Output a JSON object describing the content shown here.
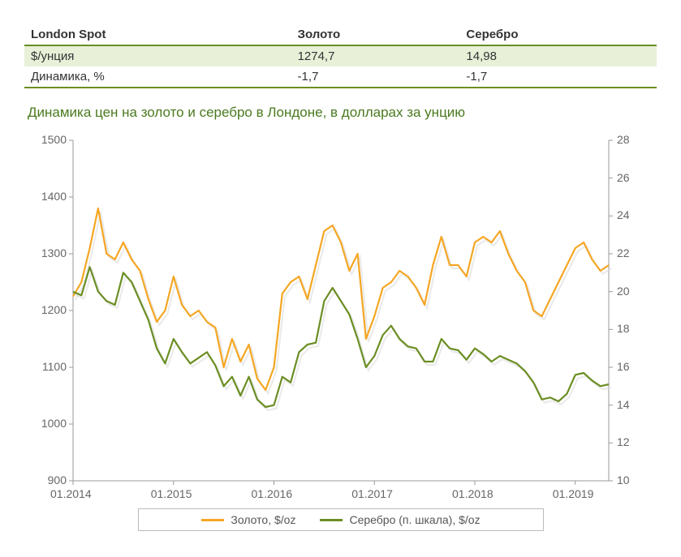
{
  "table": {
    "header": [
      "London Spot",
      "Золото",
      "Серебро"
    ],
    "rows": [
      [
        "$/унция",
        "1274,7",
        "14,98"
      ],
      [
        "Динамика, %",
        "-1,7",
        "-1,7"
      ]
    ],
    "header_border_color": "#6b8e23",
    "row0_bg": "#e8f0d8",
    "bottom_border_color": "#6b8e23"
  },
  "chart": {
    "title": "Динамика цен на золото и серебро в Лондоне, в долларах за унцию",
    "title_color": "#4a7a1f",
    "plot_bg": "#ffffff",
    "left_axis": {
      "min": 900,
      "max": 1500,
      "step": 100,
      "labels": [
        "1500",
        "1400",
        "1300",
        "1200",
        "1100",
        "1000",
        "900"
      ]
    },
    "right_axis": {
      "min": 10,
      "max": 28,
      "step": 2,
      "labels": [
        "28",
        "26",
        "24",
        "22",
        "20",
        "18",
        "16",
        "14",
        "12",
        "10"
      ]
    },
    "x_axis": {
      "labels": [
        "01.2014",
        "01.2015",
        "01.2016",
        "01.2017",
        "01.2018",
        "01.2019"
      ]
    },
    "x_range": [
      0,
      64
    ],
    "series": [
      {
        "name": "Золото, $/oz",
        "axis": "left",
        "color": "#f5a623",
        "shadow": "#d8d8d8",
        "line_width": 2.2,
        "data": [
          [
            0,
            1225
          ],
          [
            1,
            1250
          ],
          [
            2,
            1310
          ],
          [
            3,
            1380
          ],
          [
            4,
            1300
          ],
          [
            5,
            1290
          ],
          [
            6,
            1320
          ],
          [
            7,
            1290
          ],
          [
            8,
            1270
          ],
          [
            9,
            1220
          ],
          [
            10,
            1180
          ],
          [
            11,
            1200
          ],
          [
            12,
            1260
          ],
          [
            13,
            1210
          ],
          [
            14,
            1190
          ],
          [
            15,
            1200
          ],
          [
            16,
            1180
          ],
          [
            17,
            1170
          ],
          [
            18,
            1100
          ],
          [
            19,
            1150
          ],
          [
            20,
            1110
          ],
          [
            21,
            1140
          ],
          [
            22,
            1080
          ],
          [
            23,
            1060
          ],
          [
            24,
            1100
          ],
          [
            25,
            1230
          ],
          [
            26,
            1250
          ],
          [
            27,
            1260
          ],
          [
            28,
            1220
          ],
          [
            29,
            1280
          ],
          [
            30,
            1340
          ],
          [
            31,
            1350
          ],
          [
            32,
            1320
          ],
          [
            33,
            1270
          ],
          [
            34,
            1300
          ],
          [
            35,
            1150
          ],
          [
            36,
            1190
          ],
          [
            37,
            1240
          ],
          [
            38,
            1250
          ],
          [
            39,
            1270
          ],
          [
            40,
            1260
          ],
          [
            41,
            1240
          ],
          [
            42,
            1210
          ],
          [
            43,
            1280
          ],
          [
            44,
            1330
          ],
          [
            45,
            1280
          ],
          [
            46,
            1280
          ],
          [
            47,
            1260
          ],
          [
            48,
            1320
          ],
          [
            49,
            1330
          ],
          [
            50,
            1320
          ],
          [
            51,
            1340
          ],
          [
            52,
            1300
          ],
          [
            53,
            1270
          ],
          [
            54,
            1250
          ],
          [
            55,
            1200
          ],
          [
            56,
            1190
          ],
          [
            57,
            1220
          ],
          [
            58,
            1250
          ],
          [
            59,
            1280
          ],
          [
            60,
            1310
          ],
          [
            61,
            1320
          ],
          [
            62,
            1290
          ],
          [
            63,
            1270
          ],
          [
            64,
            1280
          ]
        ]
      },
      {
        "name": "Серебро (п. шкала), $/oz",
        "axis": "right",
        "color": "#6b8e23",
        "shadow": "#d8d8d8",
        "line_width": 2.2,
        "data": [
          [
            0,
            20.0
          ],
          [
            1,
            19.8
          ],
          [
            2,
            21.3
          ],
          [
            3,
            20.0
          ],
          [
            4,
            19.5
          ],
          [
            5,
            19.3
          ],
          [
            6,
            21.0
          ],
          [
            7,
            20.5
          ],
          [
            8,
            19.5
          ],
          [
            9,
            18.5
          ],
          [
            10,
            17.0
          ],
          [
            11,
            16.2
          ],
          [
            12,
            17.5
          ],
          [
            13,
            16.8
          ],
          [
            14,
            16.2
          ],
          [
            15,
            16.5
          ],
          [
            16,
            16.8
          ],
          [
            17,
            16.1
          ],
          [
            18,
            15.0
          ],
          [
            19,
            15.5
          ],
          [
            20,
            14.5
          ],
          [
            21,
            15.5
          ],
          [
            22,
            14.3
          ],
          [
            23,
            13.9
          ],
          [
            24,
            14.0
          ],
          [
            25,
            15.5
          ],
          [
            26,
            15.2
          ],
          [
            27,
            16.8
          ],
          [
            28,
            17.2
          ],
          [
            29,
            17.3
          ],
          [
            30,
            19.5
          ],
          [
            31,
            20.2
          ],
          [
            32,
            19.5
          ],
          [
            33,
            18.8
          ],
          [
            34,
            17.5
          ],
          [
            35,
            16.0
          ],
          [
            36,
            16.6
          ],
          [
            37,
            17.7
          ],
          [
            38,
            18.2
          ],
          [
            39,
            17.5
          ],
          [
            40,
            17.1
          ],
          [
            41,
            17.0
          ],
          [
            42,
            16.3
          ],
          [
            43,
            16.3
          ],
          [
            44,
            17.5
          ],
          [
            45,
            17.0
          ],
          [
            46,
            16.9
          ],
          [
            47,
            16.4
          ],
          [
            48,
            17.0
          ],
          [
            49,
            16.7
          ],
          [
            50,
            16.3
          ],
          [
            51,
            16.6
          ],
          [
            52,
            16.4
          ],
          [
            53,
            16.2
          ],
          [
            54,
            15.8
          ],
          [
            55,
            15.2
          ],
          [
            56,
            14.3
          ],
          [
            57,
            14.4
          ],
          [
            58,
            14.2
          ],
          [
            59,
            14.6
          ],
          [
            60,
            15.6
          ],
          [
            61,
            15.7
          ],
          [
            62,
            15.3
          ],
          [
            63,
            15.0
          ],
          [
            64,
            15.1
          ]
        ]
      }
    ],
    "legend": {
      "items": [
        "Золото, $/oz",
        "Серебро (п. шкала), $/oz"
      ],
      "border": "#bbbbbb"
    }
  }
}
